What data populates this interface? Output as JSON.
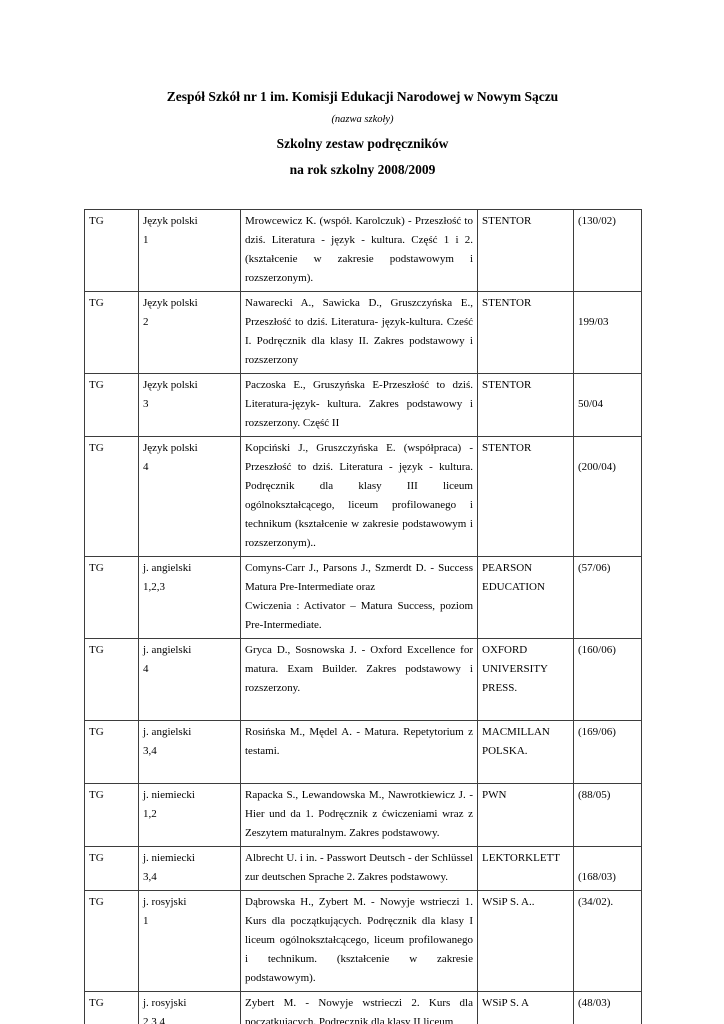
{
  "header": {
    "school_name": "Zespół Szkół nr 1 im. Komisji Edukacji Narodowej w Nowym Sączu",
    "school_name_note": "(nazwa szkoły)",
    "title": "Szkolny zestaw podręczników",
    "school_year_line": "na rok szkolny 2008/2009"
  },
  "table": {
    "rows": [
      {
        "type": "TG",
        "subject": "Język polski\n1",
        "description": "Mrowcewicz K. (współ. Karolczuk) - Przeszłość to dziś. Literatura - język - kultura. Część 1 i 2. (kształcenie w zakresie podstawowym i rozszerzonym).",
        "publisher": "STENTOR",
        "code": "(130/02)"
      },
      {
        "type": "TG",
        "subject": "Język polski\n2",
        "description": "Nawarecki A., Sawicka D., Gruszczyńska E., Przeszłość to dziś. Literatura- język-kultura. Cześć I. Podręcznik dla klasy II. Zakres podstawowy i rozszerzony",
        "publisher": "STENTOR",
        "code": "\n199/03"
      },
      {
        "type": "TG",
        "subject": "Język polski\n3",
        "description": "Paczoska E., Gruszyńska E-Przeszłość to dziś. Literatura-język- kultura. Zakres podstawowy i rozszerzony. Część II",
        "publisher": "STENTOR",
        "code": "\n50/04"
      },
      {
        "type": "TG",
        "subject": "Język polski\n4",
        "description": "Kopciński J., Gruszczyńska E. (współpraca) - Przeszłość to dziś. Literatura - język - kultura. Podręcznik dla klasy III liceum ogólnokształcącego, liceum profilowanego i technikum (kształcenie w zakresie podstawowym i rozszerzonym)..",
        "publisher": "STENTOR",
        "code": "\n(200/04)"
      },
      {
        "type": "TG",
        "subject": "j. angielski\n1,2,3",
        "description": "Comyns-Carr J., Parsons J., Szmerdt D. - Success Matura Pre-Intermediate oraz\nCwiczenia : Activator – Matura Success, poziom Pre-Intermediate.",
        "publisher": "PEARSON EDUCATION",
        "code": "(57/06)"
      },
      {
        "type": "TG",
        "subject": "j. angielski\n4",
        "description": "Gryca D., Sosnowska J. - Oxford Excellence for matura. Exam Builder. Zakres podstawowy i rozszerzony.\n ",
        "publisher": "OXFORD UNIVERSITY PRESS.",
        "code": "(160/06)"
      },
      {
        "type": "TG",
        "subject": "j. angielski\n3,4",
        "description": "Rosińska M., Mędel A. - Matura. Repetytorium z testami.\n ",
        "publisher": "MACMILLAN POLSKA.",
        "code": "(169/06)"
      },
      {
        "type": "TG",
        "subject": "j. niemiecki\n1,2",
        "description": "Rapacka S., Lewandowska M., Nawrotkiewicz J. - Hier und da 1. Podręcznik z ćwiczeniami wraz z Zeszytem maturalnym. Zakres podstawowy.",
        "publisher": "PWN",
        "code": "(88/05)"
      },
      {
        "type": "TG",
        "subject": "j. niemiecki\n3,4",
        "description": "Albrecht U. i in. - Passwort Deutsch - der Schlüssel zur deutschen Sprache 2. Zakres podstawowy.",
        "publisher": "LEKTORKLETT",
        "code": "\n(168/03)"
      },
      {
        "type": "TG",
        "subject": "j. rosyjski\n1",
        "description": "Dąbrowska H., Zybert M. - Nowyje wstrieczi 1. Kurs dla początkujących. Podręcznik dla klasy I liceum ogólnokształcącego, liceum profilowanego i technikum. (kształcenie w zakresie podstawowym).",
        "publisher": "WSiP S. A..",
        "code": "(34/02)."
      },
      {
        "type": "TG",
        "subject": "j. rosyjski\n2,3,4",
        "description": "Zybert M. - Nowyje wstrieczi 2. Kurs dla początkujących. Podręcznik dla klasy II liceum",
        "publisher": "WSiP S. A",
        "code": "(48/03)"
      }
    ]
  }
}
